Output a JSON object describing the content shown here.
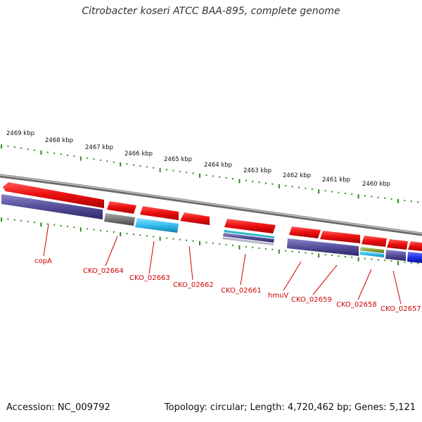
{
  "title": "Citrobacter koseri ATCC BAA-895, complete genome",
  "footer": {
    "accession": "Accession: NC_009792",
    "stats": "Topology: circular; Length: 4,720,462 bp; Genes: 5,121"
  },
  "kbp_ticks": [
    "2469 kbp",
    "2468 kbp",
    "2467 kbp",
    "2466 kbp",
    "2465 kbp",
    "2464 kbp",
    "2463 kbp",
    "2462 kbp",
    "2461 kbp",
    "2460 kbp"
  ],
  "gene_labels": [
    "copA",
    "CKO_02664",
    "CKO_02663",
    "CKO_02662",
    "CKO_02661",
    "hmuV",
    "CKO_02659",
    "CKO_02658",
    "CKO_02657"
  ],
  "colors": {
    "forward": "#ee1111",
    "cds_purple": "#554e9a",
    "cds_gray": "#777777",
    "cds_cyan": "#33bbee",
    "cds_blue": "#1f2fe8",
    "cds_olive": "#8aa33b",
    "ticks": "#2f8a1f",
    "label": "#d00000",
    "backbone": "#888888"
  }
}
